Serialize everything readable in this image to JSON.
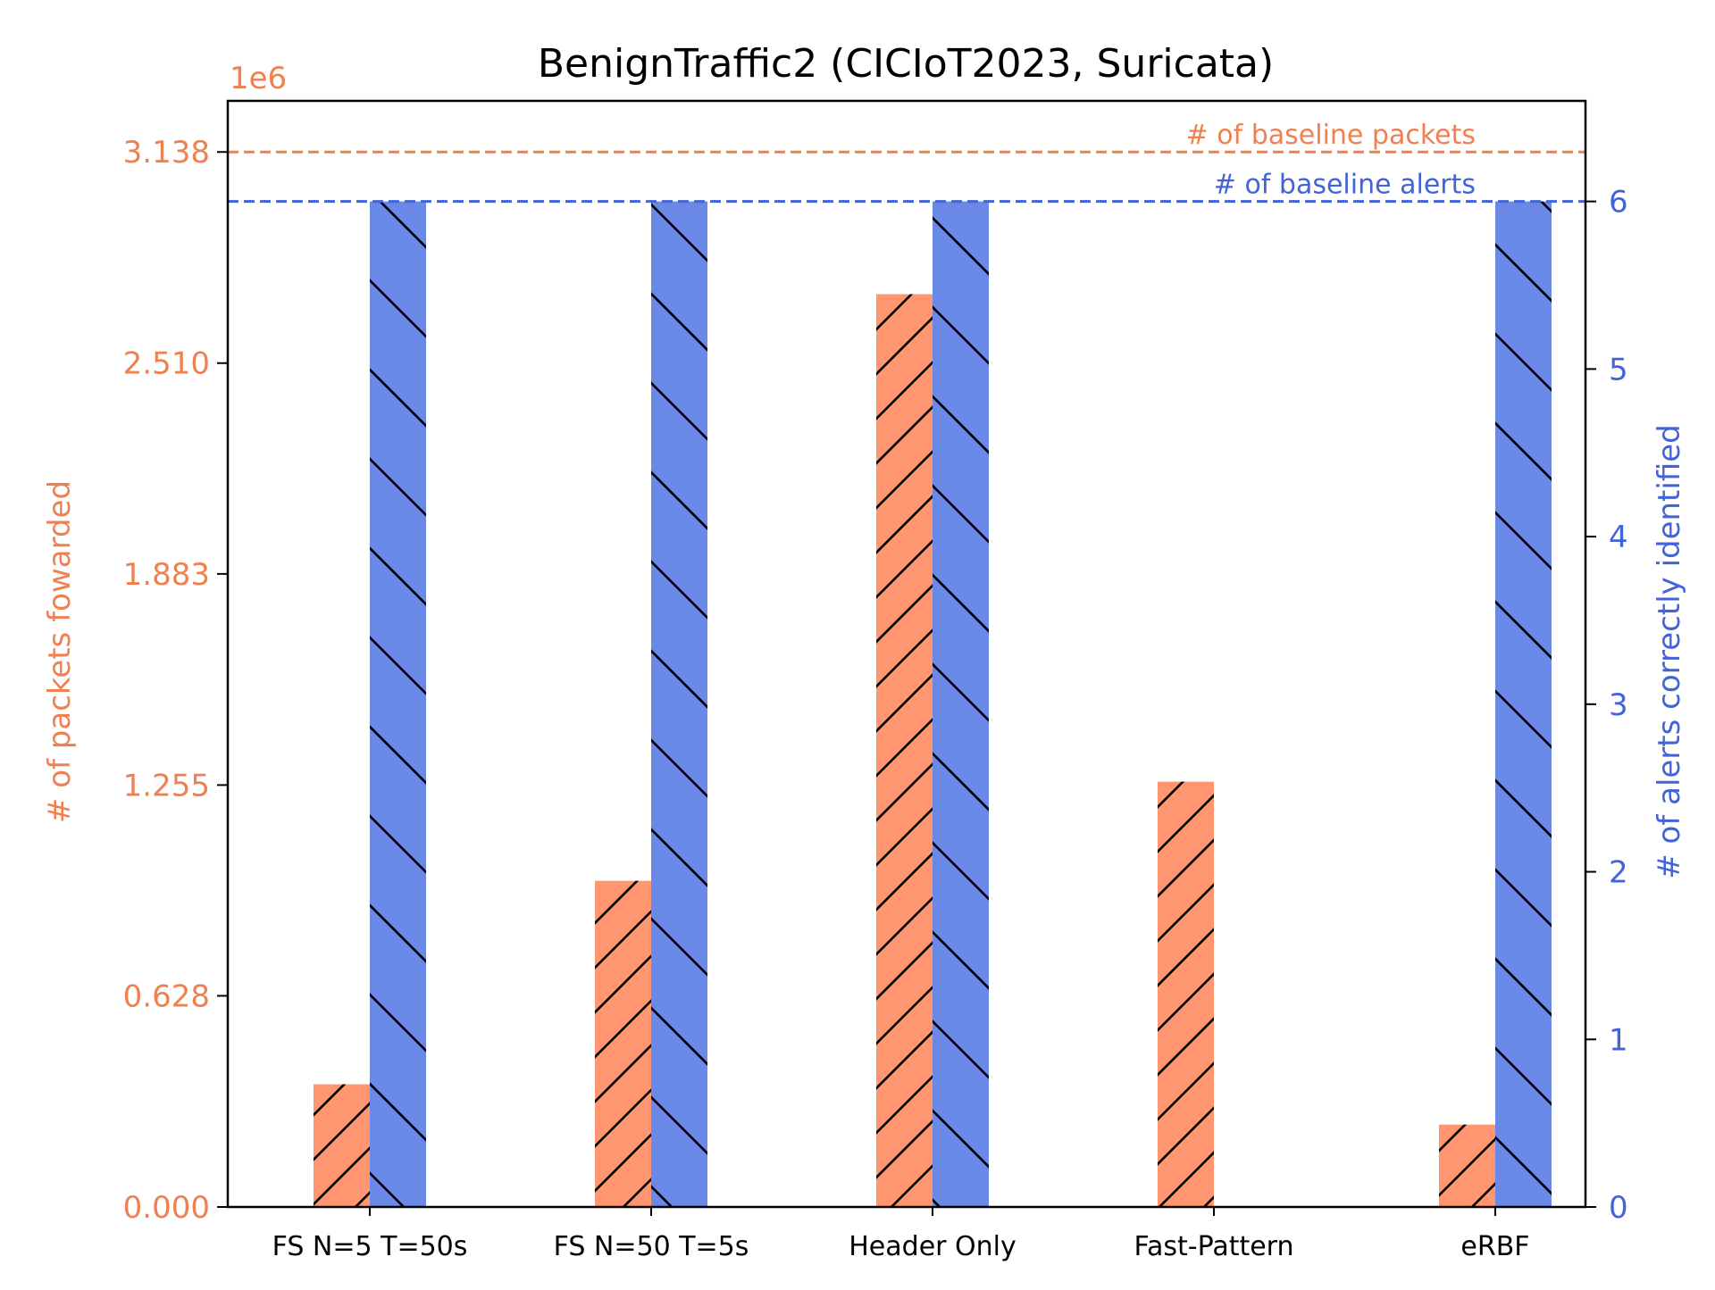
{
  "chart_data": {
    "type": "bar",
    "title": "BenignTraffic2 (CICIoT2023, Suricata)",
    "categories": [
      "FS N=5 T=50s",
      "FS N=50 T=5s",
      "Header Only",
      "Fast-Pattern",
      "eRBF"
    ],
    "left_axis": {
      "label": "# of packets fowarded",
      "offset_text": "1e6",
      "ticks": [
        "0.000",
        "0.628",
        "1.255",
        "1.883",
        "2.510",
        "3.138"
      ],
      "tick_values": [
        0.0,
        0.628,
        1.255,
        1.883,
        2.51,
        3.138
      ],
      "ylim": [
        0,
        3.29
      ],
      "color": "#f08050"
    },
    "right_axis": {
      "label": "# of alerts correctly identified",
      "ticks": [
        "0",
        "1",
        "2",
        "3",
        "4",
        "5",
        "6"
      ],
      "tick_values": [
        0,
        1,
        2,
        3,
        4,
        5,
        6
      ],
      "ylim": [
        0,
        6.6
      ],
      "color": "#4363d8"
    },
    "series": [
      {
        "axis": "left",
        "color": "#ff9670",
        "hatch": "forward",
        "values": [
          0.365,
          0.97,
          2.715,
          1.265,
          0.245
        ]
      },
      {
        "axis": "right",
        "color": "#6a88e6",
        "hatch": "back",
        "values": [
          6,
          6,
          6,
          0,
          6
        ]
      }
    ],
    "reference_lines": [
      {
        "axis": "left",
        "value": 3.138,
        "label": "# of baseline packets",
        "color": "#f08050"
      },
      {
        "axis": "right",
        "value": 6,
        "label": "# of baseline alerts",
        "color": "#4363d8"
      }
    ]
  }
}
